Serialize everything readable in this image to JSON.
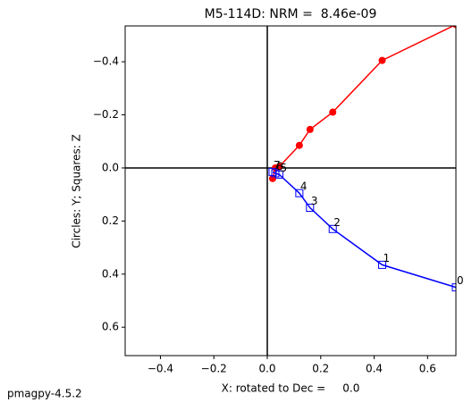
{
  "chart_data": {
    "type": "scatter",
    "title": "M5-114D: NRM =  8.46e-09",
    "x_label": "X: rotated to Dec =     0.0",
    "y_label": "Circles: Y; Squares: Z",
    "footer": "pmagpy-4.5.2",
    "xlim": [
      -0.532,
      0.706
    ],
    "ylim": [
      -0.535,
      0.707
    ],
    "y_inverted": true,
    "xticks": [
      {
        "value": -0.4,
        "label": "−0.4"
      },
      {
        "value": -0.2,
        "label": "−0.2"
      },
      {
        "value": 0,
        "label": "0.0"
      },
      0.2,
      0.4,
      0.6
    ],
    "yticks": [
      {
        "value": -0.4,
        "label": "−0.4"
      },
      {
        "value": -0.2,
        "label": "−0.2"
      },
      {
        "value": 0,
        "label": "0.0"
      },
      0.2,
      0.4,
      0.6
    ],
    "zero_lines": true,
    "point_labels": [
      "0",
      "1",
      "2",
      "3",
      "4",
      "5",
      "6",
      "7"
    ],
    "series": [
      {
        "color": "#ff0000",
        "marker": "circle",
        "x": [
          0.706,
          0.43,
          0.245,
          0.16,
          0.12,
          0.045,
          0.03,
          0.02
        ],
        "values": [
          -0.54,
          -0.405,
          -0.21,
          -0.145,
          -0.085,
          -0.005,
          0.0,
          0.04
        ]
      },
      {
        "color": "#0000ff",
        "marker": "square",
        "x": [
          0.706,
          0.43,
          0.245,
          0.16,
          0.12,
          0.045,
          0.03,
          0.02
        ],
        "values": [
          0.45,
          0.365,
          0.23,
          0.15,
          0.095,
          0.025,
          0.02,
          0.015
        ],
        "labelled": true
      }
    ]
  }
}
